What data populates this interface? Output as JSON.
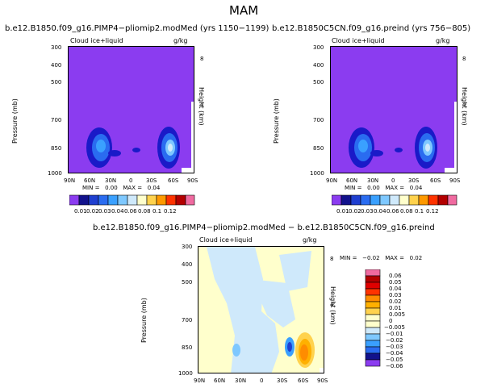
{
  "page_title": "MAM",
  "colors": {
    "purple": "#8b3cf0",
    "pale_yellow": "#ffffcc",
    "pale_blue": "#cfe9fb"
  },
  "chart_data": [
    {
      "type": "heatmap",
      "title": "b.e12.B1850.f09_g16.PIMP4−pliomip2.modMed (yrs 1150−1199)",
      "variable_label": "Cloud ice+liquid",
      "units": "g/kg",
      "ylabel": "Pressure (mb)",
      "ylabel_right": "Height (km)",
      "x_ticks": [
        "90N",
        "60N",
        "30N",
        "0",
        "30S",
        "60S",
        "90S"
      ],
      "y_ticks": [
        "300",
        "400",
        "500",
        "700",
        "850",
        "1000"
      ],
      "y_ticks_right": [
        "8",
        "4"
      ],
      "stats": "MIN =   0.00   MAX =   0.04",
      "colorbar_labels": [
        "0.01",
        "0.02",
        "0.03",
        "0.04",
        "0.06",
        "0.08",
        "0.1",
        "0.12"
      ]
    },
    {
      "type": "heatmap",
      "title": "b.e12.B1850C5CN.f09_g16.preind (yrs 756−805)",
      "variable_label": "Cloud ice+liquid",
      "units": "g/kg",
      "ylabel": "Pressure (mb)",
      "ylabel_right": "Height (km)",
      "x_ticks": [
        "90N",
        "60N",
        "30N",
        "0",
        "30S",
        "60S",
        "90S"
      ],
      "y_ticks": [
        "300",
        "400",
        "500",
        "700",
        "850",
        "1000"
      ],
      "y_ticks_right": [
        "8",
        "4"
      ],
      "stats": "MIN =   0.00   MAX =   0.04",
      "colorbar_labels": [
        "0.01",
        "0.02",
        "0.03",
        "0.04",
        "0.06",
        "0.08",
        "0.1",
        "0.12"
      ]
    },
    {
      "type": "heatmap",
      "title": "b.e12.B1850.f09_g16.PIMP4−pliomip2.modMed − b.e12.B1850C5CN.f09_g16.preind",
      "variable_label": "Cloud ice+liquid",
      "units": "g/kg",
      "ylabel": "Pressure (mb)",
      "ylabel_right": "Height (km)",
      "x_ticks": [
        "90N",
        "60N",
        "30N",
        "0",
        "30S",
        "60S",
        "90S"
      ],
      "y_ticks": [
        "300",
        "400",
        "500",
        "700",
        "850",
        "1000"
      ],
      "y_ticks_right": [
        "8",
        "4"
      ],
      "stats": "MIN =   −0.02   MAX =   0.02",
      "colorbar_labels": [
        "0.06",
        "0.05",
        "0.04",
        "0.03",
        "0.02",
        "0.01",
        "0.005",
        "0",
        "−0.005",
        "−0.01",
        "−0.02",
        "−0.03",
        "−0.04",
        "−0.05",
        "−0.06"
      ]
    }
  ]
}
